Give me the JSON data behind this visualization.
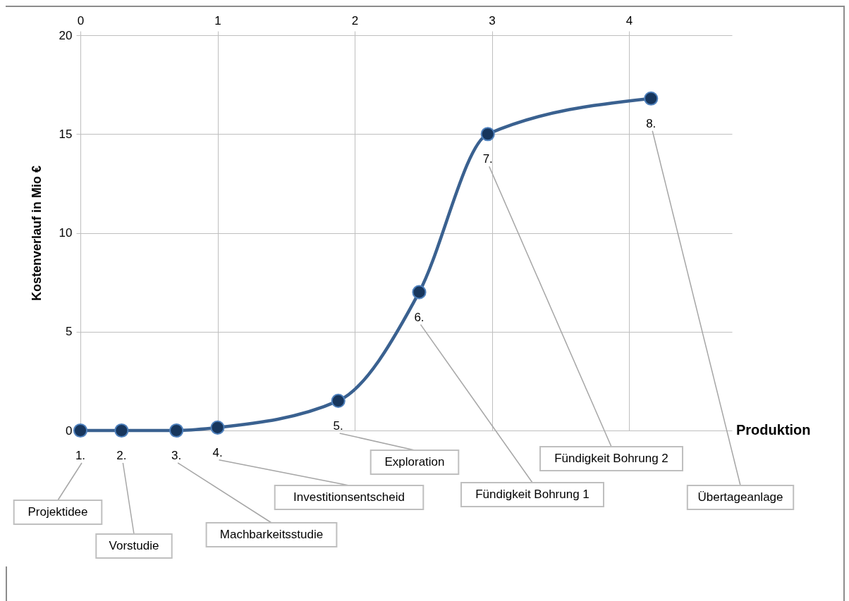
{
  "chart_data": {
    "type": "line",
    "ylabel": "Kostenverlauf in Mio €",
    "xlabel": "Produktion",
    "x": [
      0,
      0.3,
      0.7,
      1,
      1.88,
      2.47,
      2.97,
      4.16
    ],
    "series": [
      {
        "color": "#3a6190",
        "values": [
          0,
          0,
          0,
          0.15,
          1.5,
          7,
          15,
          16.8
        ]
      }
    ],
    "xlim": [
      0,
      4.75
    ],
    "xticks": [
      0,
      1,
      2,
      3,
      4
    ],
    "ylim": [
      0,
      20
    ],
    "yticks": [
      0,
      5,
      10,
      15,
      20
    ],
    "grid": true,
    "marker": "circle",
    "line_style": "solid",
    "annotations": [
      {
        "text": "1.",
        "x": 0,
        "y": 0
      },
      {
        "text": "2.",
        "x": 0.3,
        "y": 0
      },
      {
        "text": "3.",
        "x": 0.7,
        "y": 0
      },
      {
        "text": "4.",
        "x": 1,
        "y": 0.15
      },
      {
        "text": "5.",
        "x": 1.88,
        "y": 1.5
      },
      {
        "text": "6.",
        "x": 2.47,
        "y": 7
      },
      {
        "text": "7.",
        "x": 2.97,
        "y": 15
      },
      {
        "text": "8.",
        "x": 4.16,
        "y": 16.8
      },
      "Projektidee",
      "Vorstudie",
      "Machbarkeitsstudie",
      "Investitionsentscheid",
      "Exploration",
      "Fündigkeit Bohrung 1",
      "Fündigkeit Bohrung 2",
      "Übertageanlage"
    ]
  }
}
